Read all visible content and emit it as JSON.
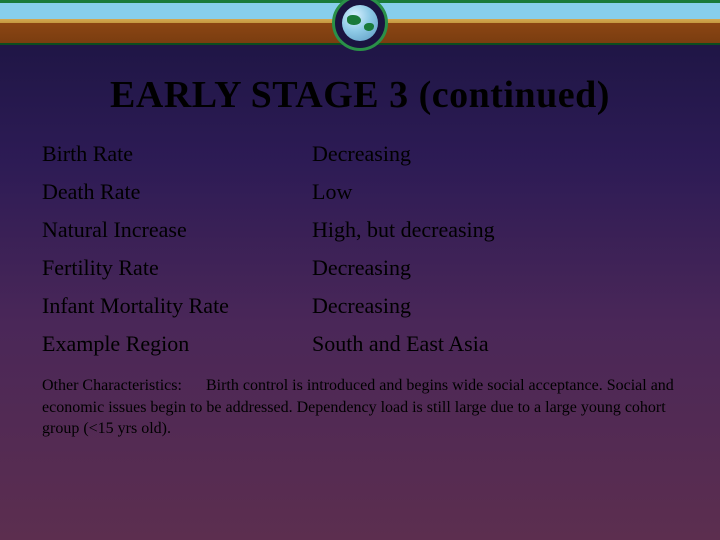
{
  "title": "EARLY STAGE 3 (continued)",
  "rows": [
    {
      "label": "Birth Rate",
      "value": "Decreasing"
    },
    {
      "label": "Death Rate",
      "value": "Low"
    },
    {
      "label": "Natural Increase",
      "value": "High, but decreasing"
    },
    {
      "label": "Fertility Rate",
      "value": "Decreasing"
    },
    {
      "label": "Infant Mortality Rate",
      "value": "Decreasing"
    },
    {
      "label": "Example Region",
      "value": "South and East Asia"
    }
  ],
  "footer": {
    "label": "Other Characteristics:",
    "text": "Birth control is introduced and begins wide social acceptance.  Social and economic issues begin to be addressed. Dependency load is still large due to a large young cohort group (<15 yrs old)."
  },
  "colors": {
    "bg_top": "#1a1440",
    "bg_bottom": "#5c2e4f",
    "banner_green": "#1a7a3a",
    "text": "#000000"
  },
  "fonts": {
    "title_size_pt": 28,
    "row_size_pt": 17,
    "footer_size_pt": 12,
    "family": "Times New Roman"
  }
}
